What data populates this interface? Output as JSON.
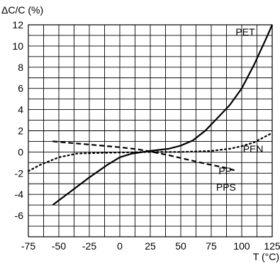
{
  "chart_data": {
    "type": "line",
    "ylabel": "ΔC/C (%)",
    "xlabel": "T (°C)",
    "xlim": [
      -75,
      125
    ],
    "ylim": [
      -8,
      12
    ],
    "x_ticks": [
      -75,
      -50,
      -25,
      0,
      25,
      50,
      75,
      100,
      125
    ],
    "y_ticks": [
      12,
      10,
      8,
      6,
      4,
      2,
      0,
      -2,
      -4,
      -6
    ],
    "grid": true,
    "series": [
      {
        "name": "PET",
        "style": "solid",
        "label_at": [
          95,
          11.0
        ],
        "points": [
          [
            -55,
            -5.0
          ],
          [
            -40,
            -3.7
          ],
          [
            -25,
            -2.4
          ],
          [
            -10,
            -1.2
          ],
          [
            0,
            -0.5
          ],
          [
            10,
            -0.15
          ],
          [
            25,
            0.1
          ],
          [
            40,
            0.3
          ],
          [
            50,
            0.6
          ],
          [
            60,
            1.1
          ],
          [
            70,
            2.0
          ],
          [
            80,
            3.2
          ],
          [
            90,
            4.4
          ],
          [
            100,
            6.0
          ],
          [
            110,
            8.2
          ],
          [
            120,
            10.7
          ],
          [
            125,
            12.0
          ]
        ]
      },
      {
        "name": "PEN",
        "style": "dotted",
        "label_at": [
          101,
          -0.05
        ],
        "points": [
          [
            -75,
            -1.8
          ],
          [
            -65,
            -1.2
          ],
          [
            -50,
            -0.5
          ],
          [
            -35,
            -0.15
          ],
          [
            -20,
            -0.1
          ],
          [
            0,
            -0.05
          ],
          [
            25,
            0.0
          ],
          [
            50,
            0.0
          ],
          [
            75,
            0.1
          ],
          [
            90,
            0.3
          ],
          [
            100,
            0.55
          ],
          [
            110,
            0.9
          ],
          [
            120,
            1.5
          ],
          [
            125,
            1.8
          ]
        ]
      },
      {
        "name": "PP",
        "style": "dashed",
        "label_at": [
          81,
          -2.1
        ],
        "points": [
          [
            -55,
            1.0
          ],
          [
            -40,
            0.85
          ],
          [
            -25,
            0.7
          ],
          [
            0,
            0.45
          ],
          [
            15,
            0.25
          ],
          [
            25,
            0.05
          ],
          [
            40,
            -0.3
          ],
          [
            55,
            -0.7
          ],
          [
            70,
            -1.1
          ],
          [
            85,
            -1.45
          ],
          [
            95,
            -1.75
          ]
        ]
      }
    ],
    "annotations": [
      {
        "text": "PPS",
        "at": [
          79,
          -3.65
        ]
      }
    ]
  }
}
